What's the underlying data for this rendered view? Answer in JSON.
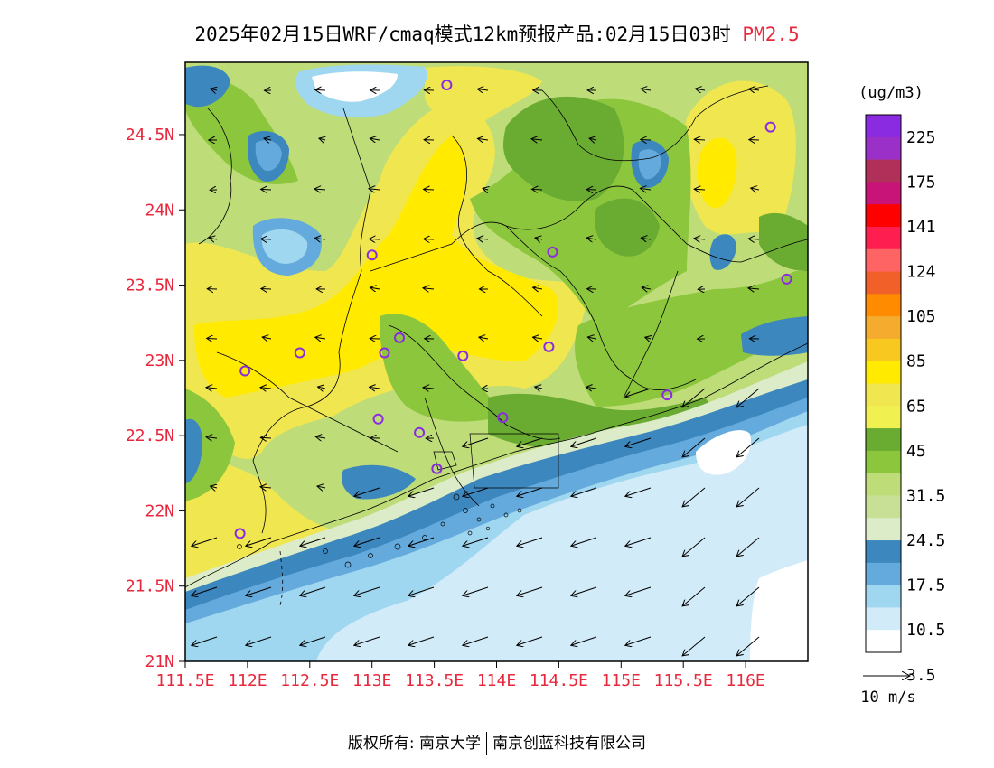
{
  "title": {
    "main": "2025年02月15日WRF/cmaq模式12km预报产品:02月15日03时",
    "species": "PM2.5"
  },
  "colors": {
    "axis_label": "#e8283c",
    "frame": "#000000",
    "station_marker": "#8a2be2"
  },
  "map": {
    "lon_ticks": [
      "111.5E",
      "112E",
      "112.5E",
      "113E",
      "113.5E",
      "114E",
      "114.5E",
      "115E",
      "115.5E",
      "116E"
    ],
    "lat_ticks": [
      "21N",
      "21.5N",
      "22N",
      "22.5N",
      "23N",
      "23.5N",
      "24N",
      "24.5N"
    ],
    "lon_range": [
      111.5,
      116.5
    ],
    "lat_range": [
      21.0,
      24.98
    ],
    "field": "PM2.5 concentration with 10 m wind vectors"
  },
  "legend": {
    "unit": "(ug/m3)",
    "labels": [
      "225",
      "175",
      "141",
      "124",
      "105",
      "85",
      "65",
      "45",
      "31.5",
      "24.5",
      "17.5",
      "10.5",
      "3.5"
    ],
    "colors_top_to_bottom": [
      "#8a2be2",
      "#9b30c8",
      "#b0305a",
      "#c81478",
      "#ff0000",
      "#ff1e50",
      "#ff6464",
      "#f06028",
      "#ff8c00",
      "#f5ab2d",
      "#f8c820",
      "#ffea00",
      "#f0e650",
      "#f0f050",
      "#6aab32",
      "#8cc63c",
      "#bedc78",
      "#c8e096",
      "#dcebc8",
      "#3c87be",
      "#64aadc",
      "#a0d7f0",
      "#d2ebf8",
      "#ffffff"
    ]
  },
  "wind_scale": {
    "label": "10 m/s"
  },
  "stations": [
    {
      "lon": 113.6,
      "lat": 24.83
    },
    {
      "lon": 116.2,
      "lat": 24.55
    },
    {
      "lon": 113.0,
      "lat": 23.7
    },
    {
      "lon": 114.45,
      "lat": 23.72
    },
    {
      "lon": 116.33,
      "lat": 23.54
    },
    {
      "lon": 113.22,
      "lat": 23.15
    },
    {
      "lon": 112.42,
      "lat": 23.05
    },
    {
      "lon": 113.1,
      "lat": 23.05
    },
    {
      "lon": 113.73,
      "lat": 23.03
    },
    {
      "lon": 114.42,
      "lat": 23.09
    },
    {
      "lon": 111.98,
      "lat": 22.93
    },
    {
      "lon": 115.37,
      "lat": 22.77
    },
    {
      "lon": 113.05,
      "lat": 22.61
    },
    {
      "lon": 114.05,
      "lat": 22.62
    },
    {
      "lon": 113.38,
      "lat": 22.52
    },
    {
      "lon": 113.52,
      "lat": 22.28
    },
    {
      "lon": 111.94,
      "lat": 21.85
    }
  ],
  "footer": {
    "copyright": "版权所有: 南京大学",
    "company": "南京创蓝科技有限公司"
  }
}
